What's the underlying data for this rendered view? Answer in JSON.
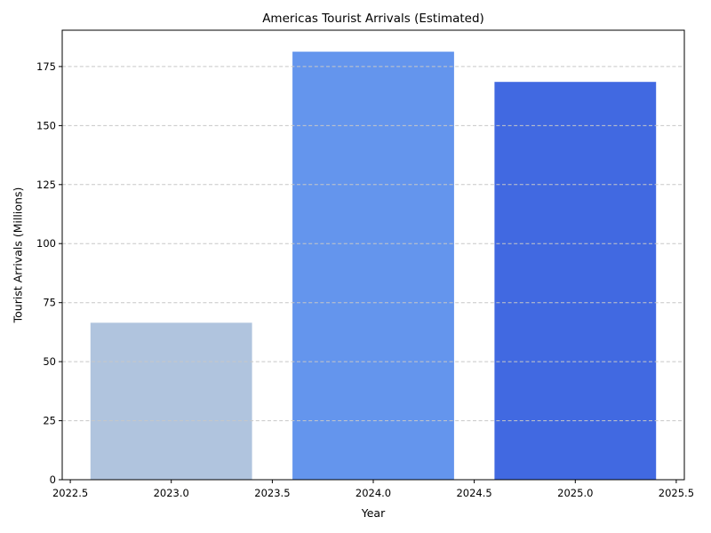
{
  "chart_data": {
    "type": "bar",
    "title": "Americas Tourist Arrivals (Estimated)",
    "xlabel": "Year",
    "ylabel": "Tourist Arrivals (Millions)",
    "x": [
      2023,
      2024,
      2025
    ],
    "values": [
      66.5,
      181.3,
      168.5
    ],
    "bar_width": 0.8,
    "bar_colors": [
      "#b0c4de",
      "#6495ed",
      "#4169e1"
    ],
    "bar_color_names": [
      "lightsteelblue",
      "cornflowerblue",
      "royalblue"
    ],
    "xlim": [
      2022.46,
      2025.54
    ],
    "ylim": [
      0,
      190.4
    ],
    "xticks": {
      "values": [
        2022.5,
        2023.0,
        2023.5,
        2024.0,
        2024.5,
        2025.0,
        2025.5
      ],
      "labels": [
        "2022.5",
        "2023.0",
        "2023.5",
        "2024.0",
        "2024.5",
        "2025.0",
        "2025.5"
      ]
    },
    "yticks": {
      "values": [
        0,
        25,
        50,
        75,
        100,
        125,
        150,
        175
      ],
      "labels": [
        "0",
        "25",
        "50",
        "75",
        "100",
        "125",
        "150",
        "175"
      ]
    },
    "grid": {
      "axis": "y",
      "style": "dashed",
      "color": "#c7c7c7",
      "above_bars": true
    },
    "legend": "none",
    "spine_color": "#000000",
    "background": "#ffffff"
  }
}
